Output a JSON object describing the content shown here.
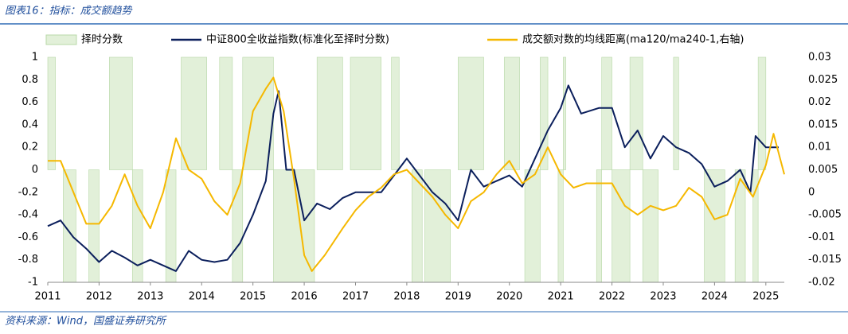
{
  "header": {
    "title": "图表16：指标：成交额趋势"
  },
  "chart_data": {
    "type": "line",
    "xlim": [
      2011,
      2025.36
    ],
    "xticks": [
      2011,
      2012,
      2013,
      2014,
      2015,
      2016,
      2017,
      2018,
      2019,
      2020,
      2021,
      2022,
      2023,
      2024,
      2025
    ],
    "ylim": [
      -1,
      1
    ],
    "yticks": [
      1,
      0.8,
      0.6,
      0.4,
      0.2,
      0,
      -0.2,
      -0.4,
      -0.6,
      -0.8,
      -1
    ],
    "y2lim": [
      -0.02,
      0.03
    ],
    "y2ticks": [
      0.03,
      0.025,
      0.02,
      0.015,
      0.01,
      0.005,
      0,
      -0.005,
      -0.01,
      -0.015,
      -0.02
    ],
    "series": [
      {
        "name": "择时分数",
        "type": "step-area",
        "color": "#e2f0d9",
        "x": [
          2011.0,
          2011.15,
          2011.3,
          2011.55,
          2011.8,
          2012.0,
          2012.2,
          2012.65,
          2012.85,
          2013.3,
          2013.5,
          2013.6,
          2014.1,
          2014.35,
          2014.6,
          2014.8,
          2015.4,
          2016.2,
          2016.25,
          2016.75,
          2016.9,
          2017.5,
          2017.7,
          2017.85,
          2018.1,
          2018.3,
          2018.35,
          2018.85,
          2019.0,
          2019.5,
          2019.9,
          2020.2,
          2020.3,
          2020.6,
          2020.75,
          2020.95,
          2021.05,
          2021.1,
          2021.7,
          2021.8,
          2022.0,
          2022.35,
          2022.6,
          2022.9,
          2023.2,
          2023.3,
          2023.8,
          2024.2,
          2024.4,
          2024.6,
          2024.75,
          2024.85,
          2025.0
        ],
        "values": [
          1,
          0,
          -1,
          0,
          -1,
          0,
          1,
          -1,
          0,
          -1,
          0,
          1,
          0,
          1,
          -1,
          1,
          -1,
          0,
          1,
          0,
          1,
          0,
          1,
          0,
          -1,
          0,
          -1,
          0,
          1,
          0,
          1,
          0,
          -1,
          1,
          0,
          -1,
          1,
          0,
          -1,
          1,
          -1,
          1,
          -1,
          0,
          1,
          0,
          -1,
          0,
          -1,
          0,
          -1,
          1,
          0
        ]
      },
      {
        "name": "中证800全收益指数(标准化至择时分数)",
        "type": "line",
        "color": "#0b1f5c",
        "x": [
          2011.0,
          2011.25,
          2011.5,
          2011.75,
          2012.0,
          2012.25,
          2012.5,
          2012.75,
          2013.0,
          2013.25,
          2013.5,
          2013.75,
          2014.0,
          2014.25,
          2014.5,
          2014.75,
          2015.0,
          2015.25,
          2015.4,
          2015.5,
          2015.65,
          2015.8,
          2016.0,
          2016.25,
          2016.5,
          2016.75,
          2017.0,
          2017.25,
          2017.5,
          2017.75,
          2018.0,
          2018.25,
          2018.5,
          2018.75,
          2019.0,
          2019.25,
          2019.5,
          2019.75,
          2020.0,
          2020.25,
          2020.5,
          2020.75,
          2021.0,
          2021.15,
          2021.4,
          2021.75,
          2022.0,
          2022.25,
          2022.5,
          2022.75,
          2023.0,
          2023.25,
          2023.5,
          2023.75,
          2024.0,
          2024.25,
          2024.5,
          2024.7,
          2024.8,
          2025.0,
          2025.25
        ],
        "values": [
          -0.5,
          -0.45,
          -0.6,
          -0.7,
          -0.82,
          -0.72,
          -0.78,
          -0.85,
          -0.8,
          -0.85,
          -0.9,
          -0.72,
          -0.8,
          -0.82,
          -0.8,
          -0.65,
          -0.4,
          -0.1,
          0.5,
          0.7,
          0.0,
          0.0,
          -0.45,
          -0.3,
          -0.35,
          -0.25,
          -0.2,
          -0.2,
          -0.2,
          -0.05,
          0.1,
          -0.05,
          -0.2,
          -0.3,
          -0.45,
          0.0,
          -0.15,
          -0.1,
          -0.05,
          -0.15,
          0.1,
          0.35,
          0.55,
          0.75,
          0.5,
          0.55,
          0.55,
          0.2,
          0.35,
          0.1,
          0.3,
          0.2,
          0.15,
          0.05,
          -0.15,
          -0.1,
          0.0,
          -0.2,
          0.3,
          0.2,
          0.2
        ]
      },
      {
        "name": "成交额对数的均线距离(ma120/ma240-1,右轴)",
        "type": "line",
        "axis": "y2",
        "color": "#f5b800",
        "x": [
          2011.0,
          2011.25,
          2011.5,
          2011.75,
          2012.0,
          2012.25,
          2012.5,
          2012.75,
          2013.0,
          2013.25,
          2013.5,
          2013.75,
          2014.0,
          2014.25,
          2014.5,
          2014.75,
          2015.0,
          2015.25,
          2015.4,
          2015.6,
          2015.8,
          2016.0,
          2016.15,
          2016.4,
          2016.75,
          2017.0,
          2017.25,
          2017.5,
          2017.75,
          2018.0,
          2018.25,
          2018.5,
          2018.75,
          2019.0,
          2019.25,
          2019.5,
          2019.75,
          2020.0,
          2020.25,
          2020.5,
          2020.75,
          2021.0,
          2021.25,
          2021.5,
          2021.75,
          2022.0,
          2022.25,
          2022.5,
          2022.75,
          2023.0,
          2023.25,
          2023.5,
          2023.75,
          2024.0,
          2024.25,
          2024.5,
          2024.75,
          2025.0,
          2025.15,
          2025.36
        ],
        "values": [
          0.007,
          0.007,
          0.0,
          -0.007,
          -0.007,
          -0.003,
          0.004,
          -0.003,
          -0.008,
          0.0,
          0.012,
          0.005,
          0.003,
          -0.002,
          -0.005,
          0.002,
          0.018,
          0.023,
          0.0255,
          0.018,
          0.003,
          -0.014,
          -0.0175,
          -0.014,
          -0.008,
          -0.004,
          -0.001,
          0.001,
          0.004,
          0.005,
          0.002,
          -0.001,
          -0.005,
          -0.008,
          -0.002,
          0.0,
          0.004,
          0.007,
          0.002,
          0.004,
          0.01,
          0.004,
          0.001,
          0.002,
          0.002,
          0.002,
          -0.003,
          -0.005,
          -0.003,
          -0.004,
          -0.003,
          0.001,
          -0.001,
          -0.006,
          -0.005,
          0.003,
          -0.001,
          0.006,
          0.013,
          0.004
        ]
      }
    ]
  },
  "footer": {
    "source": "资料来源：Wind，国盛证券研究所"
  }
}
